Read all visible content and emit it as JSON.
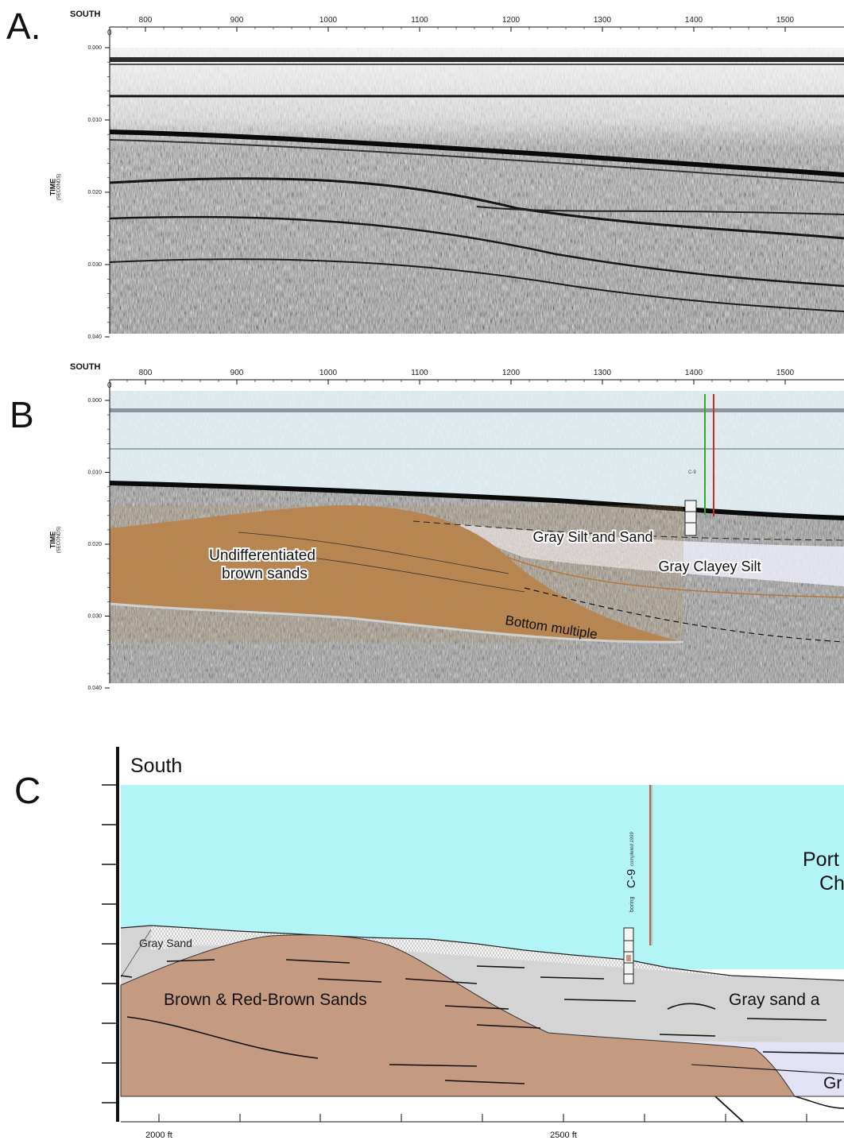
{
  "panels": {
    "a": {
      "letter": "A."
    },
    "b": {
      "letter": "B"
    },
    "c": {
      "letter": "C"
    }
  },
  "seismic_axes": {
    "direction_label": "SOUTH",
    "x_origin_label": "0",
    "x_ticks": [
      "800",
      "900",
      "1000",
      "1100",
      "1200",
      "1300",
      "1400",
      "1500"
    ],
    "y_ticks": [
      "0.000",
      "0.010",
      "0.020",
      "0.030",
      "0.040"
    ],
    "y_title": "TIME",
    "y_title_sub": "(SECONDS)"
  },
  "panel_b_units": {
    "brown_sands": [
      "Undifferentiated",
      "brown sands"
    ],
    "gray_silt_sand": "Gray Silt and Sand",
    "gray_clayey_silt": "Gray Clayey Silt",
    "bottom_multiple": "Bottom multiple",
    "boring_small_label": "C-9"
  },
  "panel_c": {
    "direction_label": "South",
    "water_label_line1": "Port",
    "water_label_line2": "Ch",
    "gray_sand": "Gray Sand",
    "brown_red_sands": "Brown & Red-Brown Sands",
    "gray_sand_right": "Gray sand a",
    "gr_label": "Gr",
    "boring_prefix": "boring",
    "boring_id": "C-9",
    "boring_note": "completed 1999",
    "x_ticks": [
      "2000 ft",
      "2500 ft"
    ]
  },
  "colors": {
    "brown_sands_b": "#b8834e",
    "water": "#b3f5f7",
    "brown_sands_c": "#c49a80",
    "gray_sand_c": "#d4d4d4",
    "clayey_silt": "#e2e2f4",
    "boring_red": "#cc2b1f",
    "boring_green": "#34a82d"
  }
}
